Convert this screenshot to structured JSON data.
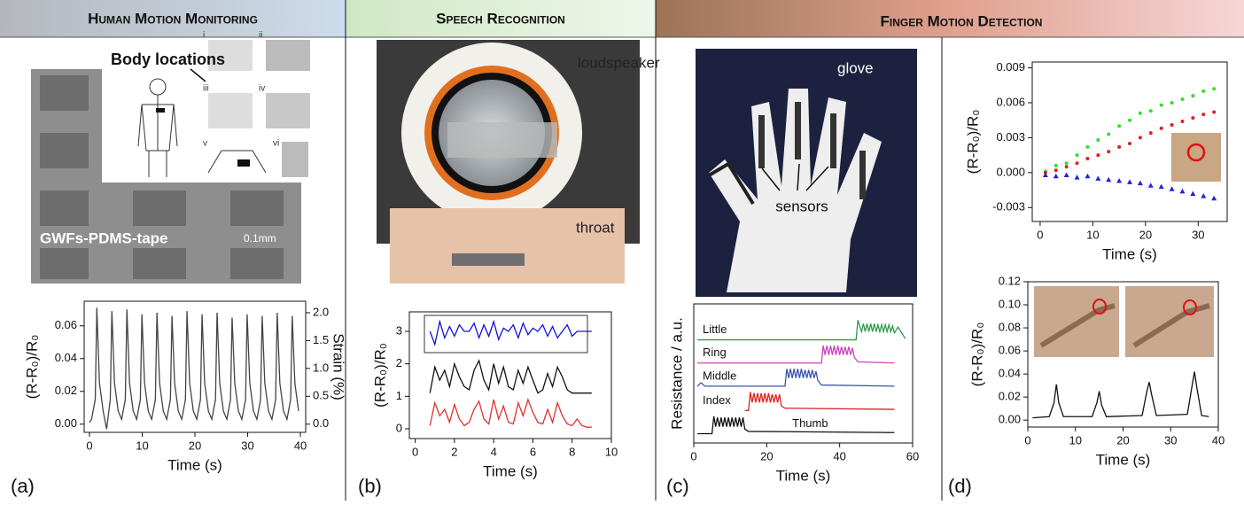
{
  "header": {
    "sections": [
      "Human Motion Monitoring",
      "Speech Recognition",
      "Finger Motion Detection"
    ]
  },
  "panels": [
    "(a)",
    "(b)",
    "(c)",
    "(d)"
  ],
  "labels": {
    "body_locations": "Body locations",
    "tape": "GWFs-PDMS-tape",
    "scale": "0.1mm",
    "loudspeaker": "loudspeaker",
    "throat": "throat",
    "glove": "glove",
    "sensors": "sensors",
    "numerals": [
      "i",
      "ii",
      "iii",
      "iv",
      "v",
      "vi"
    ]
  },
  "chart_data": [
    {
      "type": "line",
      "xlabel": "Time (s)",
      "ylabel": "(R-R₀)/R₀",
      "y2label": "Strain (%)",
      "x": [
        0,
        0.4,
        1.1,
        1.4,
        1.9,
        2.6,
        3.25,
        3.95,
        4.25,
        4.75,
        5.45,
        6.1,
        6.8,
        7.1,
        7.6,
        8.3,
        8.95,
        9.65,
        9.95,
        10.45,
        11.15,
        11.8,
        12.5,
        12.8,
        13.3,
        14.0,
        14.65,
        15.35,
        15.65,
        16.15,
        16.85,
        17.5,
        18.2,
        18.5,
        19.0,
        19.7,
        20.35,
        21.05,
        21.35,
        21.85,
        22.55,
        23.2,
        23.9,
        24.2,
        24.7,
        25.4,
        26.05,
        26.75,
        27.05,
        27.55,
        28.25,
        28.9,
        29.6,
        29.9,
        30.4,
        31.1,
        31.75,
        32.45,
        32.75,
        33.25,
        33.95,
        34.6,
        35.3,
        35.6,
        36.1,
        36.8,
        37.45,
        38.15,
        38.45,
        38.95,
        39.65
      ],
      "series": [
        {
          "color": "#444444",
          "values": [
            0.001,
            0.003,
            0.015,
            0.071,
            0.025,
            0.008,
            -0.003,
            0.015,
            0.069,
            0.025,
            0.008,
            0.003,
            0.015,
            0.07,
            0.025,
            0.008,
            0.003,
            0.015,
            0.067,
            0.025,
            0.008,
            0.003,
            0.015,
            0.068,
            0.025,
            0.008,
            0.003,
            0.015,
            0.066,
            0.025,
            0.008,
            0.003,
            0.015,
            0.069,
            0.025,
            0.008,
            0.003,
            0.015,
            0.067,
            0.025,
            0.008,
            0.003,
            0.015,
            0.068,
            0.025,
            0.008,
            0.003,
            0.015,
            0.065,
            0.025,
            0.008,
            0.003,
            0.015,
            0.067,
            0.025,
            0.008,
            0.003,
            0.015,
            0.066,
            0.025,
            0.008,
            0.003,
            0.015,
            0.068,
            0.025,
            0.008,
            0.003,
            0.015,
            0.066,
            0.025,
            0.008
          ]
        }
      ],
      "xlim": [
        -1,
        41
      ],
      "xticks": [
        0,
        10,
        20,
        30,
        40
      ],
      "ylim": [
        -0.005,
        0.075
      ],
      "yticks": [
        {
          "value": 0,
          "label": "0.00"
        },
        0.02,
        0.04,
        0.06
      ],
      "y2lim": [
        -0.147,
        2.206
      ],
      "y2ticks": [
        {
          "value": 0,
          "label": "0.0"
        },
        0.5,
        {
          "value": 1,
          "label": "1.0"
        },
        1.5,
        {
          "value": 2,
          "label": "2.0"
        }
      ]
    },
    {
      "type": "line",
      "xlabel": "Time (s)",
      "ylabel": "(R-R₀)/R₀",
      "x": [
        0.75,
        1,
        1.25,
        1.5,
        1.75,
        2,
        2.25,
        2.5,
        2.75,
        3,
        3.25,
        3.5,
        3.75,
        4,
        4.25,
        4.5,
        4.75,
        5,
        5.25,
        5.5,
        5.75,
        6,
        6.25,
        6.5,
        6.75,
        7,
        7.25,
        7.5,
        7.75,
        8,
        8.25,
        8.5,
        8.75,
        9
      ],
      "series": [
        {
          "color": "#1010e0",
          "values": [
            3,
            2.6,
            3.3,
            2.8,
            3.15,
            2.85,
            3.2,
            3,
            3,
            3.25,
            2.8,
            3.2,
            2.85,
            3.3,
            2.75,
            3.1,
            3,
            3.2,
            2.8,
            3.25,
            2.9,
            3.1,
            3,
            3.2,
            2.85,
            3.15,
            2.8,
            3,
            3.2,
            2.85,
            3,
            3,
            3,
            3
          ]
        },
        {
          "color": "#111111",
          "values": [
            1.1,
            1.9,
            1.5,
            1.8,
            1.3,
            2.0,
            1.6,
            1.3,
            1.2,
            1.8,
            2.1,
            1.5,
            1.2,
            2.0,
            1.4,
            1.9,
            1.3,
            1.2,
            1.8,
            1.4,
            1.9,
            1.5,
            1.1,
            1.2,
            1.7,
            1.3,
            1.9,
            1.6,
            1.2,
            1.1,
            1.1,
            1.1,
            1.1,
            1.1
          ]
        },
        {
          "color": "#e03030",
          "values": [
            0.1,
            0.8,
            0.4,
            0.6,
            0.2,
            0.75,
            0.3,
            0.1,
            0.2,
            0.6,
            0.85,
            0.3,
            0.15,
            0.9,
            0.3,
            0.7,
            0.2,
            0.15,
            0.8,
            0.4,
            0.9,
            0.5,
            0.2,
            0.15,
            0.6,
            0.2,
            0.8,
            0.4,
            0.15,
            0.1,
            0.3,
            0.1,
            0.05,
            0.05
          ]
        }
      ],
      "xlim": [
        -0.3,
        10
      ],
      "xticks": [
        0,
        2,
        4,
        6,
        8,
        10
      ],
      "ylim": [
        -0.3,
        3.6
      ],
      "yticks": [
        0,
        1,
        2,
        3
      ]
    },
    {
      "type": "line",
      "xlabel": "Time (s)",
      "ylabel": "Resistance / a.u.",
      "series": [
        {
          "name": "Little",
          "color": "#2e9a4a",
          "x": [
            1,
            44.5,
            45,
            46,
            46.5,
            47,
            47.5,
            48,
            48.5,
            49,
            49.5,
            50,
            50.5,
            51,
            51.5,
            52,
            52.5,
            53,
            53.5,
            54,
            54.5,
            55,
            56,
            58
          ],
          "values": [
            4.05,
            4.05,
            4.9,
            4.4,
            4.75,
            4.4,
            4.75,
            4.4,
            4.75,
            4.4,
            4.75,
            4.4,
            4.7,
            4.4,
            4.7,
            4.4,
            4.7,
            4.4,
            4.7,
            4.4,
            4.65,
            4.35,
            4.6,
            4.1
          ]
        },
        {
          "name": "Ring",
          "color": "#cc44bb",
          "x": [
            1,
            35,
            35.5,
            36,
            36.5,
            37,
            37.5,
            38,
            38.5,
            39,
            39.5,
            40,
            40.5,
            41,
            41.5,
            42,
            42.5,
            43,
            43.5,
            44,
            45,
            55
          ],
          "values": [
            3.05,
            3.05,
            3.8,
            3.4,
            3.8,
            3.4,
            3.8,
            3.4,
            3.8,
            3.4,
            3.8,
            3.4,
            3.75,
            3.4,
            3.75,
            3.4,
            3.75,
            3.4,
            3.7,
            3.3,
            3.1,
            3.05
          ]
        },
        {
          "name": "Middle",
          "color": "#3a55b0",
          "x": [
            1,
            2,
            3,
            25,
            25.5,
            26,
            26.5,
            27,
            27.5,
            28,
            28.5,
            29,
            29.5,
            30,
            30.5,
            31,
            31.5,
            32,
            32.5,
            33,
            33.5,
            34,
            35,
            55
          ],
          "values": [
            2.05,
            2.2,
            2.05,
            2.05,
            2.8,
            2.4,
            2.8,
            2.4,
            2.8,
            2.4,
            2.8,
            2.4,
            2.8,
            2.4,
            2.75,
            2.4,
            2.75,
            2.4,
            2.75,
            2.4,
            2.7,
            2.3,
            2.1,
            2.05
          ]
        },
        {
          "name": "Index",
          "color": "#e02020",
          "x": [
            14,
            15,
            15.5,
            16,
            16.5,
            17,
            17.5,
            18,
            18.5,
            19,
            19.5,
            20,
            20.5,
            21,
            21.5,
            22,
            22.5,
            23,
            23.5,
            24,
            25,
            55
          ],
          "values": [
            1.0,
            1.0,
            1.8,
            1.35,
            1.75,
            1.35,
            1.75,
            1.35,
            1.75,
            1.35,
            1.75,
            1.35,
            1.75,
            1.35,
            1.7,
            1.35,
            1.7,
            1.35,
            1.7,
            1.2,
            1.1,
            1.05
          ]
        },
        {
          "name": "Thumb",
          "color": "#111111",
          "x": [
            1,
            5,
            5.5,
            6,
            6.5,
            7,
            7.5,
            8,
            8.5,
            9,
            9.5,
            10,
            10.5,
            11,
            11.5,
            12,
            12.5,
            13,
            13.5,
            14,
            15,
            55
          ],
          "values": [
            0,
            0,
            0.75,
            0.3,
            0.7,
            0.3,
            0.7,
            0.3,
            0.7,
            0.3,
            0.7,
            0.3,
            0.7,
            0.3,
            0.7,
            0.3,
            0.7,
            0.3,
            0.7,
            0.2,
            0.1,
            0.05
          ]
        }
      ],
      "xlim": [
        0,
        60
      ],
      "xticks": [
        0,
        20,
        40,
        60
      ],
      "ylim": [
        -0.4,
        5.6
      ]
    },
    {
      "type": "scatter",
      "xlabel": "Time (s)",
      "ylabel": "(R-R₀)/R₀",
      "x": [
        1,
        3,
        5,
        7,
        9,
        11,
        13,
        15,
        17,
        19,
        21,
        23,
        25,
        27,
        29,
        31,
        33
      ],
      "series": [
        {
          "color": "#33dd33",
          "marker": "circle",
          "values": [
            0.0001,
            0.0006,
            0.0008,
            0.0015,
            0.0022,
            0.0028,
            0.0033,
            0.004,
            0.0045,
            0.0051,
            0.0053,
            0.0058,
            0.006,
            0.0063,
            0.0066,
            0.007,
            0.0072
          ]
        },
        {
          "color": "#dd2222",
          "marker": "circle",
          "values": [
            0.0,
            0.0002,
            0.0005,
            0.0008,
            0.0012,
            0.0015,
            0.0018,
            0.0022,
            0.0025,
            0.003,
            0.0034,
            0.0038,
            0.0041,
            0.0044,
            0.0047,
            0.005,
            0.0052
          ]
        },
        {
          "color": "#2222dd",
          "marker": "triangle",
          "values": [
            -0.0002,
            -0.0003,
            -0.0002,
            -0.0004,
            -0.0003,
            -0.0005,
            -0.0006,
            -0.0007,
            -0.0008,
            -0.0009,
            -0.0011,
            -0.0012,
            -0.0014,
            -0.0016,
            -0.0018,
            -0.002,
            -0.0022
          ]
        }
      ],
      "xlim": [
        -1.5,
        35.5
      ],
      "xticks": [
        0,
        10,
        20,
        30
      ],
      "ylim": [
        -0.0042,
        0.0095
      ],
      "yticks": [
        -0.003,
        {
          "value": 0,
          "label": "0.000"
        },
        0.003,
        0.006,
        0.009
      ]
    },
    {
      "type": "line",
      "xlabel": "Time (s)",
      "ylabel": "(R-R₀)/R₀",
      "x": [
        1,
        4.5,
        5.5,
        6,
        6.5,
        7.5,
        13.5,
        14.5,
        15,
        15.5,
        16.5,
        24,
        25,
        25.5,
        26,
        27,
        33.5,
        34.5,
        35,
        35.5,
        36.5,
        38
      ],
      "series": [
        {
          "color": "#111111",
          "values": [
            0.002,
            0.003,
            0.015,
            0.031,
            0.015,
            0.003,
            0.003,
            0.015,
            0.025,
            0.013,
            0.003,
            0.004,
            0.025,
            0.033,
            0.022,
            0.004,
            0.005,
            0.03,
            0.042,
            0.028,
            0.004,
            0.003
          ]
        }
      ],
      "xlim": [
        0,
        40
      ],
      "xticks": [
        0,
        10,
        20,
        30,
        40
      ],
      "ylim": [
        -0.006,
        0.12
      ],
      "yticks": [
        {
          "value": 0,
          "label": "0.00"
        },
        {
          "value": 0.02,
          "label": "0.02"
        },
        {
          "value": 0.04,
          "label": "0.04"
        },
        {
          "value": 0.06,
          "label": "0.06"
        },
        {
          "value": 0.08,
          "label": "0.08"
        },
        {
          "value": 0.1,
          "label": "0.10"
        },
        {
          "value": 0.12,
          "label": "0.12"
        }
      ]
    }
  ]
}
